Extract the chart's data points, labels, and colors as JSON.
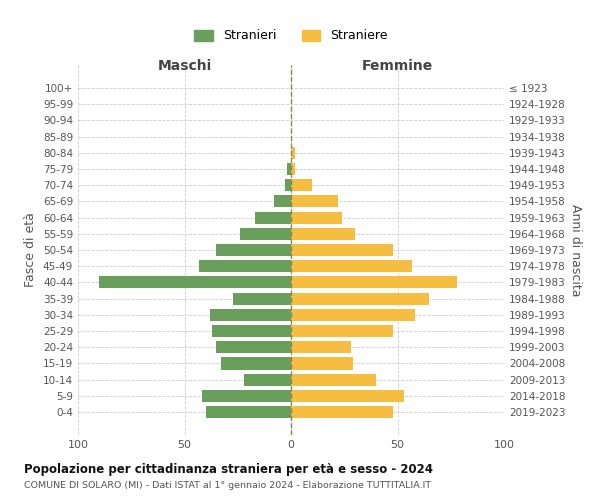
{
  "age_groups": [
    "100+",
    "95-99",
    "90-94",
    "85-89",
    "80-84",
    "75-79",
    "70-74",
    "65-69",
    "60-64",
    "55-59",
    "50-54",
    "45-49",
    "40-44",
    "35-39",
    "30-34",
    "25-29",
    "20-24",
    "15-19",
    "10-14",
    "5-9",
    "0-4"
  ],
  "birth_years": [
    "≤ 1923",
    "1924-1928",
    "1929-1933",
    "1934-1938",
    "1939-1943",
    "1944-1948",
    "1949-1953",
    "1954-1958",
    "1959-1963",
    "1964-1968",
    "1969-1973",
    "1974-1978",
    "1979-1983",
    "1984-1988",
    "1989-1993",
    "1994-1998",
    "1999-2003",
    "2004-2008",
    "2009-2013",
    "2014-2018",
    "2019-2023"
  ],
  "males": [
    0,
    0,
    0,
    0,
    0,
    2,
    3,
    8,
    17,
    24,
    35,
    43,
    90,
    27,
    38,
    37,
    35,
    33,
    22,
    42,
    40
  ],
  "females": [
    0,
    0,
    0,
    0,
    2,
    2,
    10,
    22,
    24,
    30,
    48,
    57,
    78,
    65,
    58,
    48,
    28,
    29,
    40,
    53,
    48
  ],
  "male_color": "#6a9e5c",
  "female_color": "#f5be41",
  "bar_height": 0.75,
  "xlim": 100,
  "title": "Popolazione per cittadinanza straniera per età e sesso - 2024",
  "subtitle": "COMUNE DI SOLARO (MI) - Dati ISTAT al 1° gennaio 2024 - Elaborazione TUTTITALIA.IT",
  "xlabel_left": "Maschi",
  "xlabel_right": "Femmine",
  "ylabel_left": "Fasce di età",
  "ylabel_right": "Anni di nascita",
  "legend_male": "Stranieri",
  "legend_female": "Straniere",
  "background_color": "#ffffff",
  "grid_color": "#cccccc"
}
